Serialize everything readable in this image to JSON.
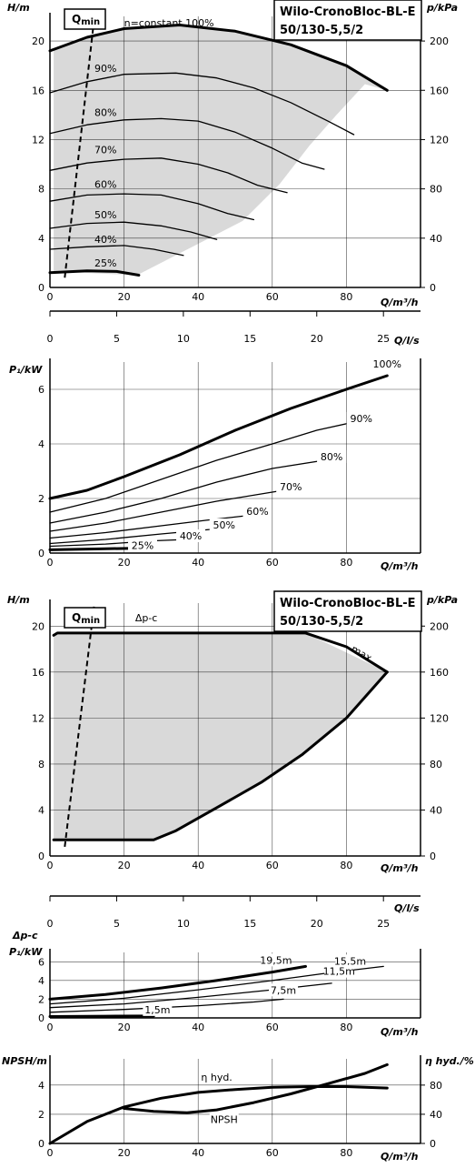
{
  "header": {
    "title_line1": "Wilo-CronoBloc-BL-E",
    "title_line2": "50/130-5,5/2",
    "qmin_label": "Q",
    "qmin_sub": "min"
  },
  "axes": {
    "H_label": "H/m",
    "p_label": "p/kPa",
    "Q_m3h_label": "Q/m³/h",
    "Q_ls_label": "Q/l/s",
    "P1_label": "P₁/kW",
    "dpc_label": "Δp-c",
    "NPSH_label": "NPSH/m",
    "eta_label": "η hyd./%"
  },
  "chart_data": [
    {
      "id": "chart1",
      "type": "line",
      "title": "Wilo-CronoBloc-BL-E 50/130-5,5/2",
      "xlabel": "Q/m³/h",
      "ylabel": "H/m",
      "y2label": "p/kPa",
      "xlim": [
        0,
        100
      ],
      "ylim": [
        0,
        22
      ],
      "xticks": [
        0,
        20,
        40,
        60,
        80
      ],
      "yticks": [
        0,
        4,
        8,
        12,
        16,
        20
      ],
      "y2ticks": [
        0,
        40,
        80,
        120,
        160,
        200
      ],
      "grid": true,
      "operating_envelope": [
        [
          1,
          1.3
        ],
        [
          23.5,
          1.0
        ],
        [
          52,
          5.4
        ],
        [
          62,
          8.4
        ],
        [
          70,
          11.5
        ],
        [
          77,
          13.9
        ],
        [
          85,
          16.5
        ],
        [
          91,
          16.2
        ],
        [
          91,
          16.0
        ]
      ],
      "series": [
        {
          "name": "n=constant 100%",
          "label_x": 20,
          "label_y": 21.2,
          "bold": true,
          "points": [
            [
              0,
              19.2
            ],
            [
              10,
              20.3
            ],
            [
              20,
              21.0
            ],
            [
              35,
              21.3
            ],
            [
              50,
              20.8
            ],
            [
              65,
              19.7
            ],
            [
              80,
              18.0
            ],
            [
              91,
              16.0
            ]
          ]
        },
        {
          "name": "90%",
          "label_x": 15,
          "label_y": 17.5,
          "points": [
            [
              0,
              15.8
            ],
            [
              10,
              16.7
            ],
            [
              20,
              17.3
            ],
            [
              34,
              17.4
            ],
            [
              45,
              17.0
            ],
            [
              55,
              16.2
            ],
            [
              65,
              15.0
            ],
            [
              75,
              13.5
            ],
            [
              82,
              12.4
            ]
          ]
        },
        {
          "name": "80%",
          "label_x": 15,
          "label_y": 13.9,
          "points": [
            [
              0,
              12.5
            ],
            [
              10,
              13.2
            ],
            [
              20,
              13.6
            ],
            [
              30,
              13.7
            ],
            [
              40,
              13.5
            ],
            [
              50,
              12.6
            ],
            [
              60,
              11.3
            ],
            [
              68,
              10.1
            ],
            [
              74,
              9.6
            ]
          ]
        },
        {
          "name": "70%",
          "label_x": 15,
          "label_y": 10.9,
          "points": [
            [
              0,
              9.5
            ],
            [
              10,
              10.1
            ],
            [
              20,
              10.4
            ],
            [
              30,
              10.5
            ],
            [
              40,
              10.0
            ],
            [
              48,
              9.3
            ],
            [
              56,
              8.3
            ],
            [
              64,
              7.7
            ]
          ]
        },
        {
          "name": "60%",
          "label_x": 15,
          "label_y": 8.1,
          "points": [
            [
              0,
              7.0
            ],
            [
              10,
              7.5
            ],
            [
              20,
              7.6
            ],
            [
              30,
              7.5
            ],
            [
              40,
              6.8
            ],
            [
              48,
              6.0
            ],
            [
              55,
              5.5
            ]
          ]
        },
        {
          "name": "50%",
          "label_x": 15,
          "label_y": 5.6,
          "points": [
            [
              0,
              4.8
            ],
            [
              10,
              5.2
            ],
            [
              20,
              5.3
            ],
            [
              30,
              5.0
            ],
            [
              38,
              4.5
            ],
            [
              45,
              3.9
            ]
          ]
        },
        {
          "name": "40%",
          "label_x": 15,
          "label_y": 3.6,
          "points": [
            [
              0,
              3.1
            ],
            [
              10,
              3.3
            ],
            [
              20,
              3.4
            ],
            [
              28,
              3.1
            ],
            [
              36,
              2.6
            ]
          ]
        },
        {
          "name": "25%",
          "label_x": 15,
          "label_y": 1.7,
          "bold": true,
          "points": [
            [
              0,
              1.2
            ],
            [
              10,
              1.35
            ],
            [
              18,
              1.3
            ],
            [
              24,
              1.0
            ]
          ]
        }
      ],
      "qmin_line": [
        [
          4,
          0.8
        ],
        [
          12,
          22
        ]
      ]
    },
    {
      "id": "flowaxis1",
      "type": "axis",
      "xlabel": "Q/l/s",
      "ticks": [
        0,
        5,
        10,
        15,
        20,
        25
      ]
    },
    {
      "id": "chart2",
      "type": "line",
      "ylabel": "P₁/kW",
      "xlabel": "Q/m³/h",
      "xlim": [
        0,
        100
      ],
      "ylim": [
        0,
        7
      ],
      "xticks": [
        0,
        20,
        40,
        60,
        80
      ],
      "yticks": [
        0,
        2,
        4,
        6
      ],
      "grid": true,
      "series": [
        {
          "name": "100%",
          "label_x": 91,
          "label_y": 6.8,
          "bold": true,
          "points": [
            [
              0,
              2.0
            ],
            [
              10,
              2.3
            ],
            [
              20,
              2.8
            ],
            [
              35,
              3.6
            ],
            [
              50,
              4.5
            ],
            [
              65,
              5.3
            ],
            [
              80,
              6.0
            ],
            [
              91,
              6.5
            ]
          ]
        },
        {
          "name": "90%",
          "label_x": 84,
          "label_y": 4.8,
          "points": [
            [
              0,
              1.5
            ],
            [
              15,
              2.0
            ],
            [
              30,
              2.7
            ],
            [
              45,
              3.4
            ],
            [
              60,
              4.0
            ],
            [
              72,
              4.5
            ],
            [
              82,
              4.8
            ]
          ]
        },
        {
          "name": "80%",
          "label_x": 76,
          "label_y": 3.4,
          "points": [
            [
              0,
              1.1
            ],
            [
              15,
              1.5
            ],
            [
              30,
              2.0
            ],
            [
              45,
              2.6
            ],
            [
              60,
              3.1
            ],
            [
              74,
              3.4
            ]
          ]
        },
        {
          "name": "70%",
          "label_x": 65,
          "label_y": 2.3,
          "points": [
            [
              0,
              0.8
            ],
            [
              15,
              1.1
            ],
            [
              30,
              1.5
            ],
            [
              45,
              1.9
            ],
            [
              63,
              2.3
            ]
          ]
        },
        {
          "name": "60%",
          "label_x": 56,
          "label_y": 1.4,
          "points": [
            [
              0,
              0.55
            ],
            [
              15,
              0.75
            ],
            [
              30,
              1.0
            ],
            [
              42,
              1.2
            ],
            [
              55,
              1.4
            ]
          ]
        },
        {
          "name": "50%",
          "label_x": 47,
          "label_y": 0.9,
          "points": [
            [
              0,
              0.35
            ],
            [
              15,
              0.5
            ],
            [
              30,
              0.7
            ],
            [
              46,
              0.9
            ]
          ]
        },
        {
          "name": "40%",
          "label_x": 38,
          "label_y": 0.5,
          "points": [
            [
              0,
              0.25
            ],
            [
              15,
              0.33
            ],
            [
              28,
              0.45
            ],
            [
              37,
              0.5
            ]
          ]
        },
        {
          "name": "25%",
          "label_x": 25,
          "label_y": 0.15,
          "bold": true,
          "points": [
            [
              0,
              0.12
            ],
            [
              12,
              0.15
            ],
            [
              24,
              0.18
            ]
          ]
        }
      ]
    },
    {
      "id": "chart3",
      "type": "line",
      "title": "Wilo-CronoBloc-BL-E 50/130-5,5/2",
      "xlabel": "Q/m³/h",
      "ylabel": "H/m",
      "y2label": "p/kPa",
      "xlim": [
        0,
        100
      ],
      "ylim": [
        0,
        22
      ],
      "xticks": [
        0,
        20,
        40,
        60,
        80
      ],
      "yticks": [
        0,
        4,
        8,
        12,
        16,
        20
      ],
      "y2ticks": [
        0,
        40,
        80,
        120,
        160,
        200
      ],
      "grid": true,
      "operating_envelope": [
        [
          1,
          19.3
        ],
        [
          69,
          19.4
        ],
        [
          91,
          16.0
        ],
        [
          80,
          12.0
        ],
        [
          65,
          8.0
        ],
        [
          45,
          4.2
        ],
        [
          34,
          2.2
        ],
        [
          28,
          1.4
        ],
        [
          1,
          1.4
        ]
      ],
      "series": [
        {
          "name": "Δp-c",
          "label_x": 26,
          "label_y": 20.4,
          "bold": true,
          "points": [
            [
              1,
              19.2
            ],
            [
              2,
              19.4
            ],
            [
              69,
              19.4
            ]
          ]
        },
        {
          "name": "max.",
          "label_x": 84,
          "label_y": 17.3,
          "bold": true,
          "rotate": 30,
          "points": [
            [
              69,
              19.4
            ],
            [
              80,
              18.2
            ],
            [
              91,
              16.0
            ]
          ]
        },
        {
          "name": "",
          "bold": true,
          "points": [
            [
              1,
              1.4
            ],
            [
              28,
              1.4
            ],
            [
              34,
              2.2
            ],
            [
              45,
              4.2
            ],
            [
              57,
              6.4
            ],
            [
              68,
              8.8
            ],
            [
              80,
              12.0
            ],
            [
              91,
              16.0
            ]
          ]
        }
      ],
      "qmin_line": [
        [
          4,
          0.8
        ],
        [
          12,
          22
        ]
      ]
    },
    {
      "id": "flowaxis2",
      "type": "axis",
      "xlabel": "Q/l/s",
      "ticks": [
        0,
        5,
        10,
        15,
        20,
        25
      ]
    },
    {
      "id": "chart4",
      "type": "line",
      "ylabel": "P₁/kW",
      "ylabel_top": "Δp-c",
      "xlabel": "Q/m³/h",
      "xlim": [
        0,
        100
      ],
      "ylim": [
        0,
        7
      ],
      "xticks": [
        0,
        20,
        40,
        60,
        80
      ],
      "yticks": [
        0,
        2,
        4,
        6
      ],
      "grid": true,
      "series": [
        {
          "name": "19,5m",
          "label_x": 61,
          "label_y": 5.8,
          "bold": true,
          "points": [
            [
              0,
              2.0
            ],
            [
              15,
              2.5
            ],
            [
              30,
              3.2
            ],
            [
              45,
              4.0
            ],
            [
              60,
              4.9
            ],
            [
              69,
              5.5
            ]
          ]
        },
        {
          "name": "15,5m",
          "label_x": 81,
          "label_y": 5.7,
          "points": [
            [
              0,
              1.5
            ],
            [
              20,
              2.1
            ],
            [
              40,
              3.0
            ],
            [
              60,
              4.0
            ],
            [
              75,
              4.8
            ],
            [
              90,
              5.5
            ]
          ]
        },
        {
          "name": "11,5m",
          "label_x": 78,
          "label_y": 4.6,
          "points": [
            [
              0,
              1.1
            ],
            [
              20,
              1.5
            ],
            [
              40,
              2.2
            ],
            [
              60,
              3.0
            ],
            [
              76,
              3.7
            ]
          ]
        },
        {
          "name": "7,5m",
          "label_x": 63,
          "label_y": 2.6,
          "points": [
            [
              0,
              0.6
            ],
            [
              20,
              0.9
            ],
            [
              40,
              1.3
            ],
            [
              55,
              1.7
            ],
            [
              63,
              2.0
            ]
          ]
        },
        {
          "name": "1,5m",
          "label_x": 29,
          "label_y": 0.5,
          "bold": true,
          "points": [
            [
              0,
              0.15
            ],
            [
              15,
              0.18
            ],
            [
              28,
              0.2
            ]
          ]
        }
      ]
    },
    {
      "id": "chart5",
      "type": "line",
      "xlabel": "Q/m³/h",
      "ylabel": "NPSH/m",
      "y2label": "η hyd./%",
      "xlim": [
        0,
        100
      ],
      "ylim": [
        0,
        5.8
      ],
      "xticks": [
        0,
        20,
        40,
        60,
        80
      ],
      "yticks": [
        0,
        2,
        4
      ],
      "y2ticks": [
        0,
        40,
        80
      ],
      "grid": true,
      "series": [
        {
          "name": "η hyd.",
          "label_x": 45,
          "label_y": 4.3,
          "bold": true,
          "points": [
            [
              0,
              0
            ],
            [
              10,
              1.5
            ],
            [
              20,
              2.5
            ],
            [
              30,
              3.1
            ],
            [
              40,
              3.5
            ],
            [
              50,
              3.7
            ],
            [
              60,
              3.85
            ],
            [
              70,
              3.9
            ],
            [
              80,
              3.9
            ],
            [
              91,
              3.8
            ]
          ]
        },
        {
          "name": "NPSH",
          "label_x": 47,
          "label_y": 1.4,
          "bold": true,
          "points": [
            [
              20,
              2.4
            ],
            [
              28,
              2.2
            ],
            [
              37,
              2.1
            ],
            [
              45,
              2.3
            ],
            [
              55,
              2.8
            ],
            [
              65,
              3.4
            ],
            [
              75,
              4.1
            ],
            [
              85,
              4.8
            ],
            [
              91,
              5.4
            ]
          ]
        }
      ]
    }
  ]
}
